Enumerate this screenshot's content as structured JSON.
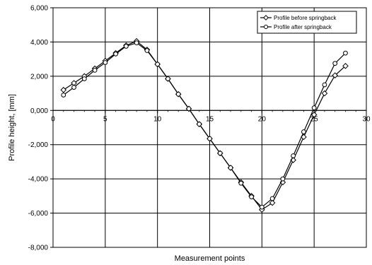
{
  "chart_data": {
    "type": "line",
    "title": "",
    "xlabel": "Measurement points",
    "ylabel": "Profile height, [mm]",
    "xlim": [
      0,
      30
    ],
    "ylim": [
      -8,
      6
    ],
    "xticks": [
      0,
      5,
      10,
      15,
      20,
      25,
      30
    ],
    "yticks": [
      6,
      4,
      2,
      0,
      -2,
      -4,
      -6,
      -8
    ],
    "x_tick_labels": [
      "0",
      "5",
      "10",
      "15",
      "20",
      "25",
      "30"
    ],
    "y_tick_labels": [
      "6,000",
      "4,000",
      "2,000",
      "0,000",
      "-2,000",
      "-4,000",
      "-6,000",
      "-8,000"
    ],
    "grid": true,
    "legend_position": "top-right",
    "x": [
      1,
      2,
      3,
      4,
      5,
      6,
      7,
      8,
      9,
      10,
      11,
      12,
      13,
      14,
      15,
      16,
      17,
      18,
      19,
      20,
      21,
      22,
      23,
      24,
      25,
      26,
      27,
      28
    ],
    "series": [
      {
        "name": "Profile before springback",
        "marker": "diamond",
        "color": "#000000",
        "values": [
          1.2,
          1.6,
          2.0,
          2.45,
          2.9,
          3.35,
          3.8,
          4.05,
          3.55,
          2.7,
          1.85,
          0.95,
          0.1,
          -0.8,
          -1.65,
          -2.5,
          -3.35,
          -4.2,
          -5.0,
          -5.8,
          -5.4,
          -4.2,
          -2.9,
          -1.55,
          -0.25,
          1.0,
          2.05,
          2.6
        ]
      },
      {
        "name": "Profile after springback",
        "marker": "circle",
        "color": "#000000",
        "values": [
          0.9,
          1.35,
          1.85,
          2.35,
          2.8,
          3.3,
          3.75,
          3.95,
          3.5,
          2.7,
          1.85,
          0.95,
          0.1,
          -0.8,
          -1.65,
          -2.5,
          -3.35,
          -4.25,
          -5.05,
          -5.65,
          -5.15,
          -4.0,
          -2.65,
          -1.25,
          0.15,
          1.5,
          2.75,
          3.35
        ]
      }
    ]
  }
}
